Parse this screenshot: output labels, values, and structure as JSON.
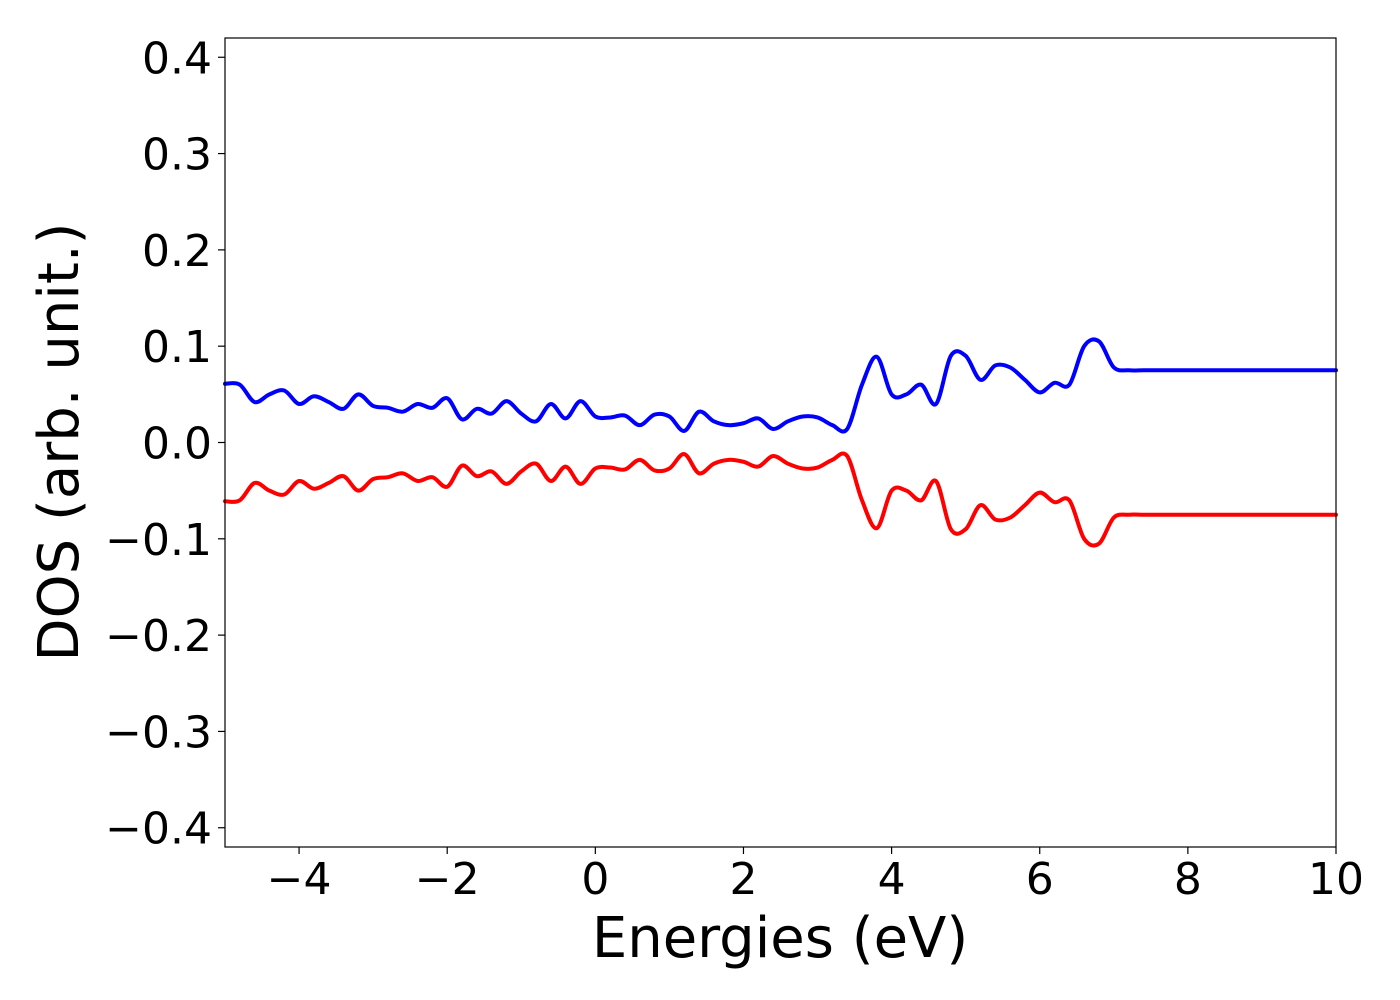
{
  "chart_data": {
    "type": "line",
    "xlabel": "Energies (eV)",
    "ylabel": "DOS (arb. unit.)",
    "xlim": [
      -5,
      10
    ],
    "ylim": [
      -0.42,
      0.42
    ],
    "xticks": [
      -4,
      -2,
      0,
      2,
      4,
      6,
      8,
      10
    ],
    "xtick_labels": [
      "−4",
      "−2",
      "0",
      "2",
      "4",
      "6",
      "8",
      "10"
    ],
    "yticks": [
      0.4,
      0.3,
      0.2,
      0.1,
      0.0,
      -0.1,
      -0.2,
      -0.3,
      -0.4
    ],
    "ytick_labels": [
      "0.4",
      "0.3",
      "0.2",
      "0.1",
      "0.0",
      "−0.1",
      "−0.2",
      "−0.3",
      "−0.4"
    ],
    "grid": false,
    "series": [
      {
        "color": "#0000ff",
        "x": [
          -5.0,
          -4.8,
          -4.6,
          -4.4,
          -4.2,
          -4.0,
          -3.8,
          -3.6,
          -3.4,
          -3.2,
          -3.0,
          -2.8,
          -2.6,
          -2.4,
          -2.2,
          -2.0,
          -1.8,
          -1.6,
          -1.4,
          -1.2,
          -1.0,
          -0.8,
          -0.6,
          -0.4,
          -0.2,
          0.0,
          0.2,
          0.4,
          0.6,
          0.8,
          1.0,
          1.2,
          1.4,
          1.6,
          1.8,
          2.0,
          2.2,
          2.4,
          2.6,
          2.8,
          3.0,
          3.2,
          3.4,
          3.6,
          3.8,
          4.0,
          4.2,
          4.4,
          4.6,
          4.8,
          5.0,
          5.2,
          5.4,
          5.6,
          5.8,
          6.0,
          6.2,
          6.4,
          6.6,
          6.8,
          7.0,
          7.2,
          7.4,
          7.6,
          7.8,
          8.0,
          8.2,
          8.4,
          8.6,
          8.8,
          9.0,
          9.2,
          9.4,
          9.6,
          9.8,
          10.0
        ],
        "y": [
          0.061,
          0.06,
          0.042,
          0.05,
          0.054,
          0.04,
          0.048,
          0.042,
          0.035,
          0.05,
          0.038,
          0.036,
          0.032,
          0.04,
          0.036,
          0.046,
          0.024,
          0.035,
          0.03,
          0.043,
          0.03,
          0.022,
          0.04,
          0.025,
          0.043,
          0.027,
          0.026,
          0.028,
          0.018,
          0.029,
          0.027,
          0.012,
          0.032,
          0.022,
          0.018,
          0.02,
          0.025,
          0.014,
          0.022,
          0.027,
          0.026,
          0.018,
          0.014,
          0.06,
          0.089,
          0.05,
          0.05,
          0.06,
          0.04,
          0.09,
          0.09,
          0.065,
          0.08,
          0.078,
          0.065,
          0.052,
          0.062,
          0.06,
          0.1,
          0.105,
          0.078,
          0.075,
          0.075,
          0.075,
          0.075,
          0.075,
          0.075,
          0.075,
          0.075,
          0.075,
          0.075,
          0.075,
          0.075,
          0.075,
          0.075,
          0.075
        ]
      },
      {
        "color": "#ff0000",
        "x": [
          -5.0,
          -4.8,
          -4.6,
          -4.4,
          -4.2,
          -4.0,
          -3.8,
          -3.6,
          -3.4,
          -3.2,
          -3.0,
          -2.8,
          -2.6,
          -2.4,
          -2.2,
          -2.0,
          -1.8,
          -1.6,
          -1.4,
          -1.2,
          -1.0,
          -0.8,
          -0.6,
          -0.4,
          -0.2,
          0.0,
          0.2,
          0.4,
          0.6,
          0.8,
          1.0,
          1.2,
          1.4,
          1.6,
          1.8,
          2.0,
          2.2,
          2.4,
          2.6,
          2.8,
          3.0,
          3.2,
          3.4,
          3.6,
          3.8,
          4.0,
          4.2,
          4.4,
          4.6,
          4.8,
          5.0,
          5.2,
          5.4,
          5.6,
          5.8,
          6.0,
          6.2,
          6.4,
          6.6,
          6.8,
          7.0,
          7.2,
          7.4,
          7.6,
          7.8,
          8.0,
          8.2,
          8.4,
          8.6,
          8.8,
          9.0,
          9.2,
          9.4,
          9.6,
          9.8,
          10.0
        ],
        "y": [
          -0.061,
          -0.06,
          -0.042,
          -0.05,
          -0.054,
          -0.04,
          -0.048,
          -0.042,
          -0.035,
          -0.05,
          -0.038,
          -0.036,
          -0.032,
          -0.04,
          -0.036,
          -0.046,
          -0.024,
          -0.035,
          -0.03,
          -0.043,
          -0.03,
          -0.022,
          -0.04,
          -0.025,
          -0.043,
          -0.027,
          -0.026,
          -0.028,
          -0.018,
          -0.029,
          -0.027,
          -0.012,
          -0.032,
          -0.022,
          -0.018,
          -0.02,
          -0.025,
          -0.014,
          -0.022,
          -0.027,
          -0.026,
          -0.018,
          -0.014,
          -0.06,
          -0.089,
          -0.05,
          -0.05,
          -0.06,
          -0.04,
          -0.09,
          -0.09,
          -0.065,
          -0.08,
          -0.078,
          -0.065,
          -0.052,
          -0.062,
          -0.06,
          -0.1,
          -0.105,
          -0.078,
          -0.075,
          -0.075,
          -0.075,
          -0.075,
          -0.075,
          -0.075,
          -0.075,
          -0.075,
          -0.075,
          -0.075,
          -0.075,
          -0.075,
          -0.075,
          -0.075,
          -0.075
        ]
      }
    ]
  }
}
